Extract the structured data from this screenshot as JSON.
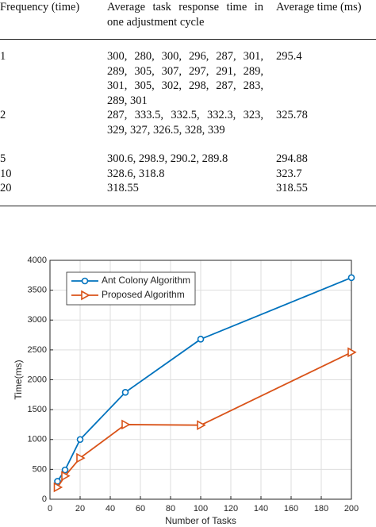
{
  "table": {
    "header": [
      "Frequency (time)",
      "Average task response time in one adjustment cycle",
      "Average time (ms)"
    ],
    "rows": [
      [
        "1",
        "300, 280, 300, 296, 287, 301, 289, 305, 307, 297, 291, 289, 301, 305, 302, 298, 287, 283, 289, 301",
        "295.4"
      ],
      [
        "2",
        "287, 333.5, 332.5, 332.3, 323, 329, 327, 326.5, 328, 339",
        "325.78"
      ],
      [
        "5",
        "300.6, 298.9, 290.2, 289.8",
        "294.88"
      ],
      [
        "10",
        "328.6, 318.8",
        "323.7"
      ],
      [
        "20",
        "318.55",
        "318.55"
      ]
    ]
  },
  "chart_data": {
    "type": "line",
    "x_label": "Number of Tasks",
    "y_label": "Time(ms)",
    "x": [
      5,
      10,
      20,
      50,
      100,
      200
    ],
    "series": [
      {
        "name": "Ant Colony Algorithm",
        "color": "#0072bd",
        "marker": "circle",
        "values": [
          300,
          490,
          1000,
          1790,
          2680,
          3710
        ]
      },
      {
        "name": "Proposed Algorithm",
        "color": "#d95319",
        "marker": "triangle-right",
        "values": [
          200,
          390,
          690,
          1250,
          1240,
          2460
        ]
      }
    ],
    "xlim": [
      0,
      200
    ],
    "xticks": [
      0,
      20,
      40,
      60,
      80,
      100,
      120,
      140,
      160,
      180,
      200
    ],
    "ylim": [
      0,
      4000
    ],
    "yticks": [
      0,
      500,
      1000,
      1500,
      2000,
      2500,
      3000,
      3500,
      4000
    ],
    "grid": true,
    "legend": "top-left"
  }
}
